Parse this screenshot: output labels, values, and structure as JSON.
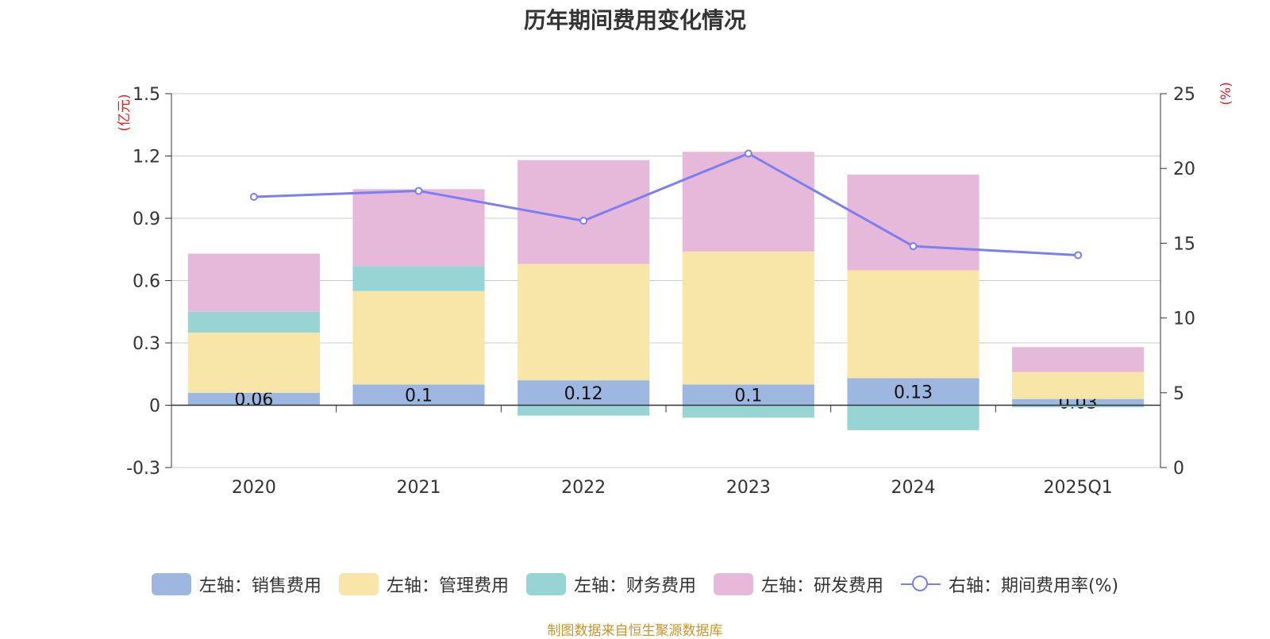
{
  "chart_data": {
    "type": "bar",
    "title": "历年期间费用变化情况",
    "categories": [
      "2020",
      "2021",
      "2022",
      "2023",
      "2024",
      "2025Q1"
    ],
    "left_axis": {
      "unit": "(亿元)",
      "ylim": [
        -0.3,
        1.5
      ],
      "ticks": [
        "-0.3",
        "0",
        "0.3",
        "0.6",
        "0.9",
        "1.2",
        "1.5"
      ]
    },
    "right_axis": {
      "unit": "(%)",
      "ylim": [
        0,
        25
      ],
      "ticks": [
        "0",
        "5",
        "10",
        "15",
        "20",
        "25"
      ]
    },
    "stacked": true,
    "grid": true,
    "legend_position": "bottom",
    "series": [
      {
        "name": "左轴：销售费用",
        "color": "#9db7e1",
        "values": [
          0.06,
          0.1,
          0.12,
          0.1,
          0.13,
          0.03
        ],
        "labels": [
          "0.06",
          "0.1",
          "0.12",
          "0.1",
          "0.13",
          "0.03"
        ]
      },
      {
        "name": "左轴：管理费用",
        "color": "#f7e6a7",
        "values": [
          0.29,
          0.45,
          0.56,
          0.64,
          0.52,
          0.13
        ]
      },
      {
        "name": "左轴：财务费用",
        "color": "#98d4d4",
        "values": [
          0.1,
          0.12,
          -0.05,
          -0.06,
          -0.12,
          -0.01
        ]
      },
      {
        "name": "左轴：研发费用",
        "color": "#e6b8d9",
        "values": [
          0.28,
          0.37,
          0.5,
          0.48,
          0.46,
          0.12
        ]
      }
    ],
    "line_series": {
      "name": "右轴：期间费用率(%)",
      "color": "#7b7ff0",
      "values": [
        18.1,
        18.5,
        16.5,
        21.0,
        14.8,
        14.2
      ]
    }
  },
  "footer": {
    "source": "制图数据来自恒生聚源数据库"
  }
}
